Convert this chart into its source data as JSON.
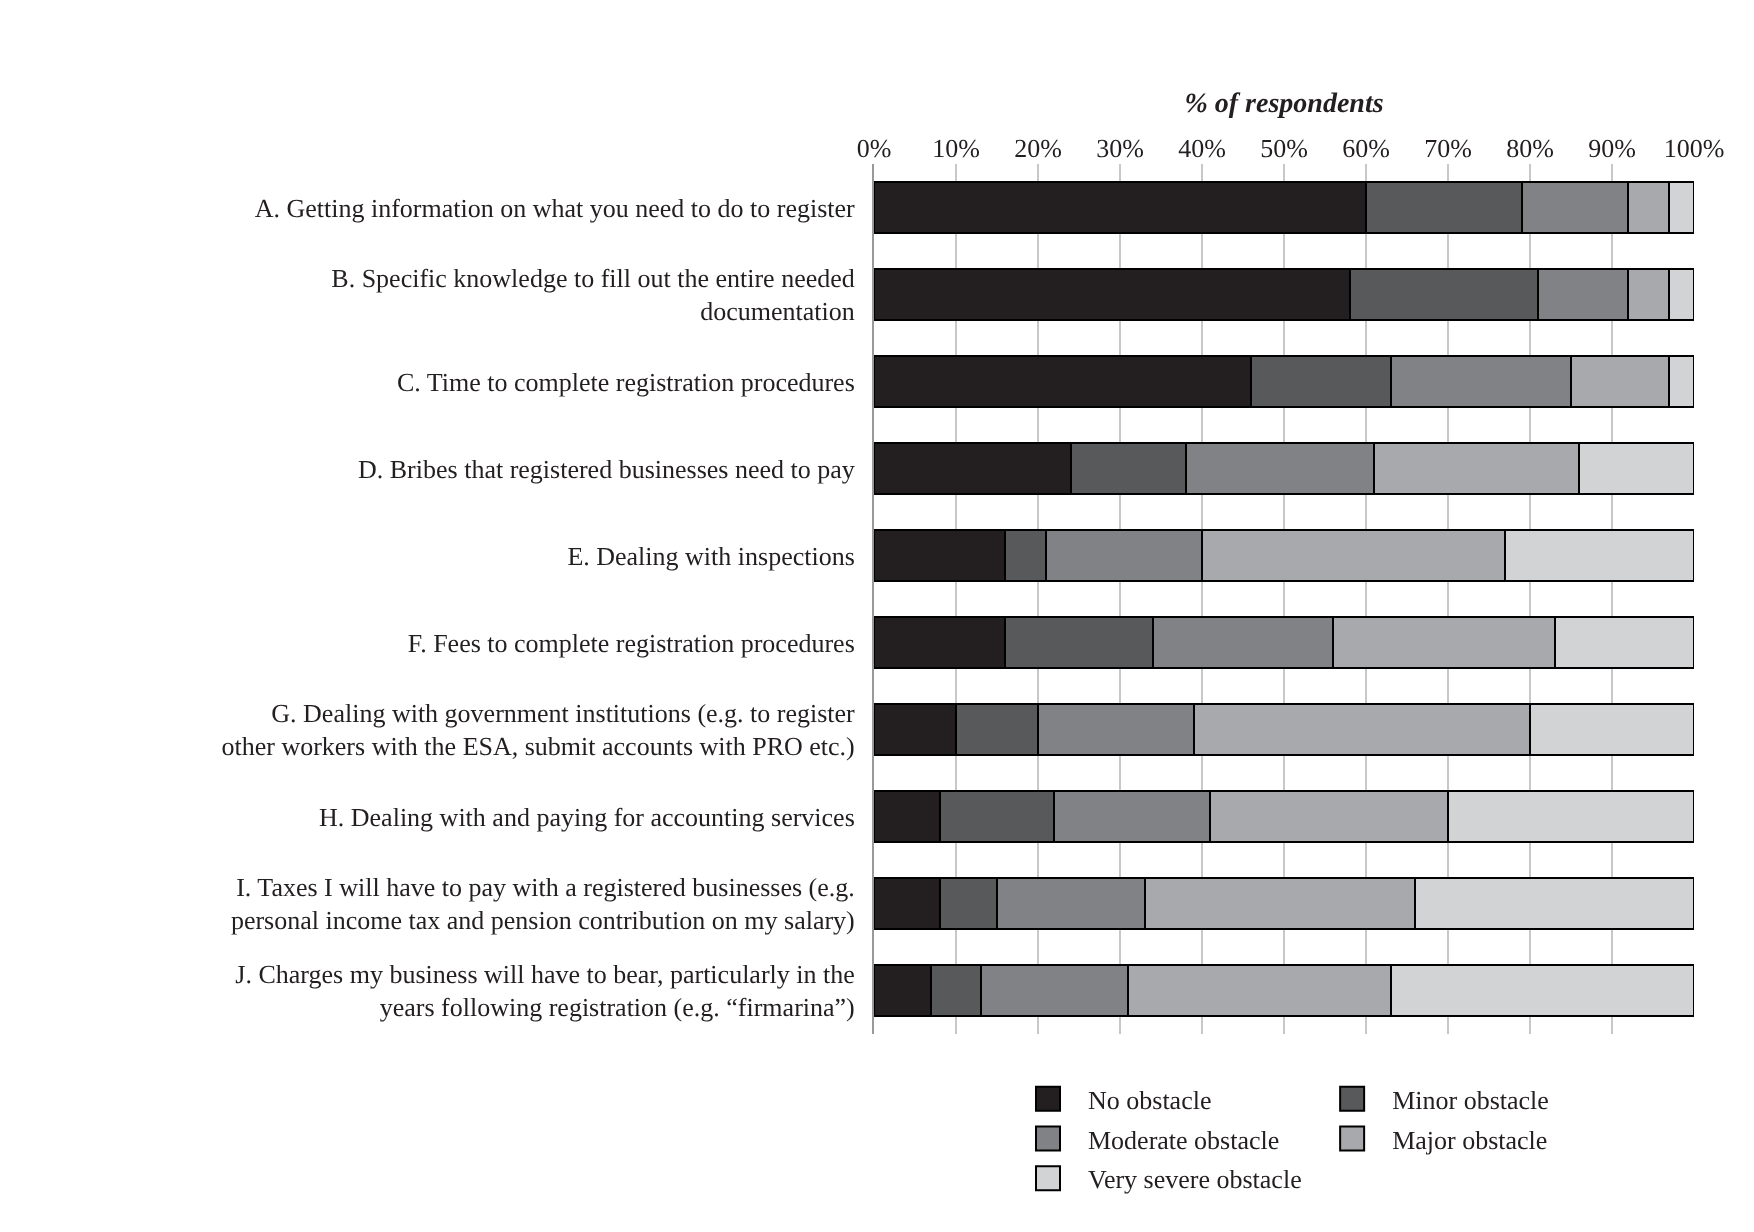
{
  "chart_data": {
    "type": "bar",
    "orientation": "horizontal",
    "stacked": true,
    "xlabel": "% of respondents",
    "categories": [
      "A. Getting information on what you need to do to register",
      "B. Specific knowledge to fill out the entire needed documentation",
      "C. Time to complete registration procedures",
      "D. Bribes that registered businesses need to pay",
      "E. Dealing with inspections",
      "F. Fees to complete registration procedures",
      "G. Dealing with government institutions (e.g. to register other workers with the ESA, submit accounts with PRO etc.)",
      "H. Dealing with and paying for accounting services",
      "I. Taxes I will have to pay with a registered businesses (e.g. personal income tax and pension contribution on my salary)",
      "J. Charges my business will have to bear, particularly in the years following registration (e.g. “firmarina”)"
    ],
    "series": [
      {
        "name": "No obstacle",
        "color": "#231f20",
        "values": [
          60,
          58,
          46,
          24,
          16,
          16,
          10,
          8,
          8,
          7
        ]
      },
      {
        "name": "Minor obstacle",
        "color": "#58595b",
        "values": [
          19,
          23,
          17,
          14,
          5,
          18,
          10,
          14,
          7,
          6
        ]
      },
      {
        "name": "Moderate obstacle",
        "color": "#808285",
        "values": [
          13,
          11,
          22,
          23,
          19,
          22,
          19,
          19,
          18,
          18
        ]
      },
      {
        "name": "Major obstacle",
        "color": "#a7a9ac",
        "values": [
          5,
          5,
          12,
          25,
          37,
          27,
          41,
          29,
          33,
          32
        ]
      },
      {
        "name": "Very severe obstacle",
        "color": "#d1d3d4",
        "values": [
          3,
          3,
          3,
          14,
          23,
          17,
          20,
          30,
          34,
          37
        ]
      }
    ],
    "xlim": [
      0,
      100
    ],
    "xticks": [
      {
        "value": 0,
        "label": "0%"
      },
      {
        "value": 10,
        "label": "10%"
      },
      {
        "value": 20,
        "label": "20%"
      },
      {
        "value": 30,
        "label": "30%"
      },
      {
        "value": 40,
        "label": "40%"
      },
      {
        "value": 50,
        "label": "50%"
      },
      {
        "value": 60,
        "label": "60%"
      },
      {
        "value": 70,
        "label": "70%"
      },
      {
        "value": 80,
        "label": "80%"
      },
      {
        "value": 90,
        "label": "90%"
      },
      {
        "value": 100,
        "label": "100%"
      }
    ],
    "grid": "x",
    "legend": "bottom"
  }
}
